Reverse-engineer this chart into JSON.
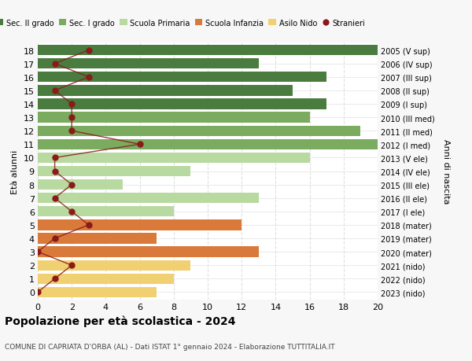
{
  "ages": [
    18,
    17,
    16,
    15,
    14,
    13,
    12,
    11,
    10,
    9,
    8,
    7,
    6,
    5,
    4,
    3,
    2,
    1,
    0
  ],
  "right_labels": [
    "2005 (V sup)",
    "2006 (IV sup)",
    "2007 (III sup)",
    "2008 (II sup)",
    "2009 (I sup)",
    "2010 (III med)",
    "2011 (II med)",
    "2012 (I med)",
    "2013 (V ele)",
    "2014 (IV ele)",
    "2015 (III ele)",
    "2016 (II ele)",
    "2017 (I ele)",
    "2018 (mater)",
    "2019 (mater)",
    "2020 (mater)",
    "2021 (nido)",
    "2022 (nido)",
    "2023 (nido)"
  ],
  "bar_values": [
    20,
    13,
    17,
    15,
    17,
    16,
    19,
    20,
    16,
    9,
    5,
    13,
    8,
    12,
    7,
    13,
    9,
    8,
    7
  ],
  "bar_colors": [
    "#4a7c3f",
    "#4a7c3f",
    "#4a7c3f",
    "#4a7c3f",
    "#4a7c3f",
    "#7aab5e",
    "#7aab5e",
    "#7aab5e",
    "#b8d9a0",
    "#b8d9a0",
    "#b8d9a0",
    "#b8d9a0",
    "#b8d9a0",
    "#d97a3a",
    "#d97a3a",
    "#d97a3a",
    "#f0d070",
    "#f0d070",
    "#f0d070"
  ],
  "stranieri_values": [
    3,
    1,
    3,
    1,
    2,
    2,
    2,
    6,
    1,
    1,
    2,
    1,
    2,
    3,
    1,
    0,
    2,
    1,
    0
  ],
  "title": "Popolazione per età scolastica - 2024",
  "subtitle": "COMUNE DI CAPRIATA D'ORBA (AL) - Dati ISTAT 1° gennaio 2024 - Elaborazione TUTTITALIA.IT",
  "ylabel_left": "Età alunni",
  "ylabel_right": "Anni di nascita",
  "xlim": [
    0,
    20
  ],
  "xticks": [
    0,
    2,
    4,
    6,
    8,
    10,
    12,
    14,
    16,
    18,
    20
  ],
  "legend_labels": [
    "Sec. II grado",
    "Sec. I grado",
    "Scuola Primaria",
    "Scuola Infanzia",
    "Asilo Nido",
    "Stranieri"
  ],
  "legend_colors": [
    "#4a7c3f",
    "#7aab5e",
    "#b8d9a0",
    "#d97a3a",
    "#f0d070",
    "#8b1a1a"
  ],
  "bg_color": "#f7f7f7",
  "plot_bg_color": "#ffffff",
  "grid_color": "#e0e0e0"
}
